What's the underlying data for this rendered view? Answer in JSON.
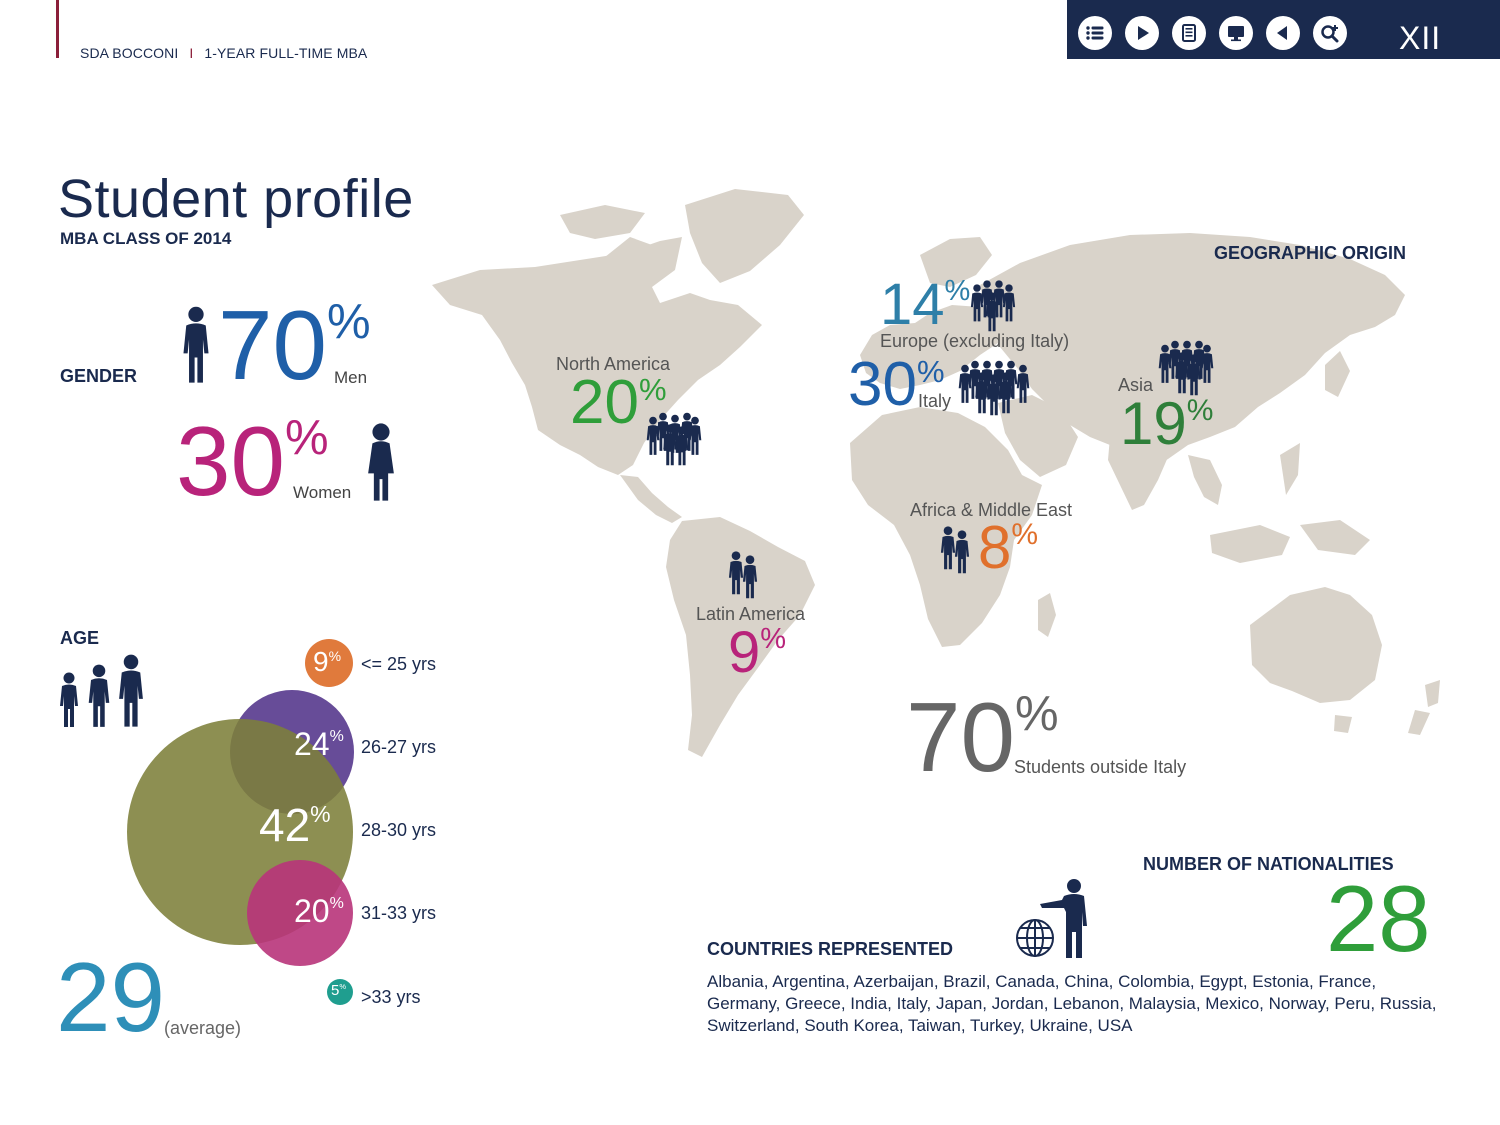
{
  "header": {
    "brand": "SDA BOCCONI",
    "separator": "I",
    "program": "1-YEAR FULL-TIME MBA",
    "page_number": "XII",
    "toolbar_icons": [
      "list-icon",
      "play-icon",
      "document-icon",
      "monitor-icon",
      "back-icon",
      "zoom-icon"
    ]
  },
  "title": "Student profile",
  "subtitle": "MBA CLASS OF 2014",
  "gender": {
    "label": "GENDER",
    "men": {
      "value": "70",
      "unit": "%",
      "caption": "Men"
    },
    "women": {
      "value": "30",
      "unit": "%",
      "caption": "Women"
    }
  },
  "age": {
    "label": "AGE",
    "average_value": "29",
    "average_caption": "(average)",
    "groups": [
      {
        "value": "9",
        "unit": "%",
        "range": "<= 25 yrs",
        "color": "#e07a3c"
      },
      {
        "value": "24",
        "unit": "%",
        "range": "26-27 yrs",
        "color": "#5a3d8f"
      },
      {
        "value": "42",
        "unit": "%",
        "range": "28-30 yrs",
        "color": "#7d7f3a"
      },
      {
        "value": "20",
        "unit": "%",
        "range": "31-33 yrs",
        "color": "#b8347a"
      },
      {
        "value": "5",
        "unit": "%",
        "range": ">33 yrs",
        "color": "#1f9e8f"
      }
    ]
  },
  "geo": {
    "label": "GEOGRAPHIC ORIGIN",
    "regions": [
      {
        "name": "North America",
        "value": "20",
        "unit": "%",
        "color": "#2f9e3a"
      },
      {
        "name": "Europe (excluding Italy)",
        "value": "14",
        "unit": "%",
        "color": "#2e7fa8"
      },
      {
        "name": "Italy",
        "value": "30",
        "unit": "%",
        "color": "#1f5fa8"
      },
      {
        "name": "Asia",
        "value": "19",
        "unit": "%",
        "color": "#2f7f3a"
      },
      {
        "name": "Africa & Middle East",
        "value": "8",
        "unit": "%",
        "color": "#e0702c"
      },
      {
        "name": "Latin America",
        "value": "9",
        "unit": "%",
        "color": "#b8237a"
      }
    ],
    "outside_value": "70",
    "outside_unit": "%",
    "outside_caption": "Students outside Italy"
  },
  "nationalities": {
    "label": "NUMBER OF NATIONALITIES",
    "value": "28",
    "color": "#2f9e3a"
  },
  "countries": {
    "label": "COUNTRIES REPRESENTED",
    "list": "Albania, Argentina, Azerbaijan, Brazil, Canada, China, Colombia, Egypt, Estonia, France, Germany, Greece, India, Italy, Japan, Jordan, Lebanon, Malaysia, Mexico, Norway, Peru, Russia, Switzerland, South Korea, Taiwan, Turkey, Ukraine, USA"
  },
  "colors": {
    "navy": "#1a2a4e",
    "blue": "#1f5fa8",
    "magenta": "#b8237a",
    "map": "#d9d3ca",
    "grey": "#555555"
  }
}
